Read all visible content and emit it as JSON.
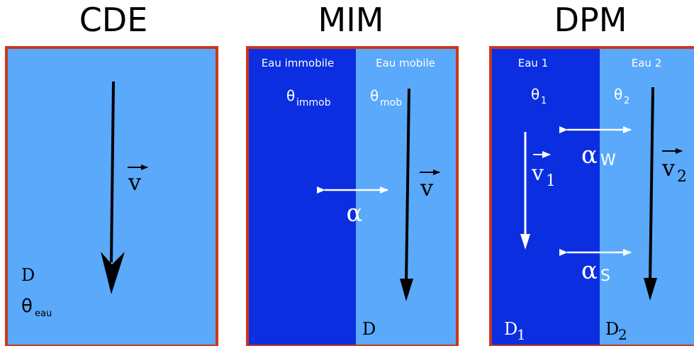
{
  "colors": {
    "light_blue": "#5aa9fa",
    "dark_blue": "#0a2ee0",
    "border": "#c8381c",
    "black": "#000000",
    "white": "#ffffff"
  },
  "panels": {
    "cde": {
      "title": "CDE",
      "velocity": "v",
      "dispersion": "D",
      "theta": "θ",
      "theta_sub": "eau"
    },
    "mim": {
      "title": "MIM",
      "immobile_label": "Eau immobile",
      "mobile_label": "Eau mobile",
      "theta": "θ",
      "theta_immobile_sub": "immob",
      "theta_mobile_sub": "mob",
      "exchange": "α",
      "velocity": "v",
      "dispersion": "D"
    },
    "dpm": {
      "title": "DPM",
      "region1_label": "Eau 1",
      "region2_label": "Eau 2",
      "theta": "θ",
      "theta1_sub": "1",
      "theta2_sub": "2",
      "velocity": "v",
      "velocity1_sub": "1",
      "velocity2_sub": "2",
      "alpha": "α",
      "alpha_w_sub": "W",
      "alpha_s_sub": "S",
      "dispersion": "D",
      "dispersion1_sub": "1",
      "dispersion2_sub": "2"
    }
  }
}
